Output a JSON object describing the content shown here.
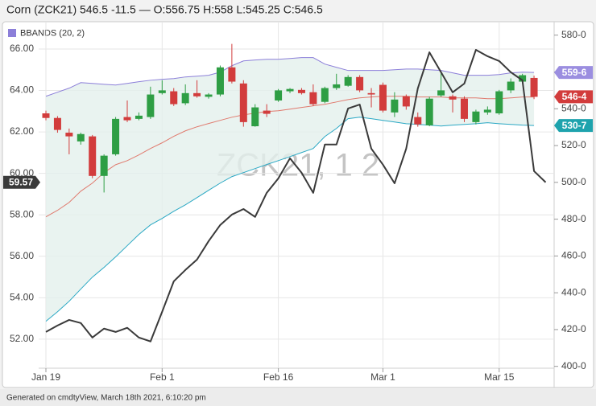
{
  "chart_data": {
    "type": "candlestick",
    "title": "Corn (ZCK21) 546.5 -11.5 — O:556.75 H:558 L:545.25 C:546.5",
    "watermark": "ZCK21, 1 2",
    "footer": "Generated on cmdtyView, March 18th 2021, 6:10:20 pm",
    "categories": [
      "Jan 19",
      null,
      null,
      null,
      null,
      null,
      null,
      null,
      null,
      null,
      "Feb 1",
      null,
      null,
      null,
      null,
      null,
      null,
      null,
      null,
      null,
      "Feb 16",
      null,
      null,
      null,
      null,
      null,
      null,
      null,
      null,
      "Mar 1",
      null,
      null,
      null,
      null,
      null,
      null,
      null,
      null,
      null,
      "Mar 15",
      null,
      null,
      null,
      null
    ],
    "ylim": [
      50.6,
      67.2
    ],
    "yticks": [
      {
        "value": 52,
        "label": "52.00"
      },
      {
        "value": 54,
        "label": "54.00"
      },
      {
        "value": 56,
        "label": "56.00"
      },
      {
        "value": 58,
        "label": "58.00"
      },
      {
        "value": 60,
        "label": "60.00"
      },
      {
        "value": 62,
        "label": "62.00"
      },
      {
        "value": 64,
        "label": "64.00"
      },
      {
        "value": 66,
        "label": "66.00"
      }
    ],
    "y2lim": [
      399,
      586
    ],
    "y2ticks": [
      {
        "value": 400,
        "label": "400-0"
      },
      {
        "value": 420,
        "label": "420-0"
      },
      {
        "value": 440,
        "label": "440-0"
      },
      {
        "value": 460,
        "label": "460-0"
      },
      {
        "value": 480,
        "label": "480-0"
      },
      {
        "value": 500,
        "label": "500-0"
      },
      {
        "value": 520,
        "label": "520-0"
      },
      {
        "value": 540,
        "label": "540-0"
      },
      {
        "value": 560,
        "label": "560-0"
      },
      {
        "value": 580,
        "label": "580-0"
      }
    ],
    "grid": true,
    "candles": {
      "axis": "y2",
      "up_color": "#2e9e44",
      "down_color": "#d23c3c",
      "open": [
        537.5,
        535,
        527,
        522.25,
        525,
        503.5,
        515.25,
        535.5,
        534.5,
        535.5,
        548.5,
        549.5,
        543,
        548.5,
        546.5,
        547.75,
        562.5,
        553.75,
        530.5,
        539,
        544.5,
        549.5,
        550.25,
        549,
        543.75,
        551.25,
        552.5,
        557.25,
        548.5,
        553,
        538,
        546.75,
        535.5,
        531,
        547.25,
        546.75,
        545.5,
        532.75,
        538,
        537.5,
        550,
        554.75,
        556.75,
        null
      ],
      "high": [
        539,
        536,
        529.25,
        527,
        525.75,
        515.25,
        535.5,
        544.5,
        538,
        552,
        555.5,
        551.25,
        553.25,
        555.5,
        548.5,
        563.5,
        575.25,
        555.5,
        542.5,
        542.5,
        550.75,
        551.25,
        551.25,
        553.25,
        552,
        559,
        558.25,
        558.25,
        551.25,
        554.25,
        549,
        547.75,
        538,
        546.5,
        560,
        547.75,
        546.75,
        539.5,
        541.25,
        550.25,
        556.5,
        559,
        558,
        null
      ],
      "low": [
        533.75,
        527,
        515.25,
        520.5,
        502.25,
        494.5,
        514.5,
        532.75,
        533.75,
        534.5,
        547.75,
        541.5,
        542,
        546,
        545.5,
        546.75,
        553.75,
        530.25,
        530.25,
        535.5,
        543.75,
        548.5,
        547.75,
        541.5,
        543,
        550.25,
        552,
        549,
        540.75,
        538,
        535.5,
        539.5,
        530.25,
        530.5,
        546.5,
        538,
        532.75,
        531.5,
        536.75,
        536.75,
        548.5,
        553.75,
        545.25,
        null
      ],
      "close": [
        535,
        528.5,
        525,
        526.25,
        503.5,
        514.5,
        534.5,
        533.75,
        536.25,
        547.75,
        550,
        542.5,
        548.5,
        546.75,
        547.75,
        562.5,
        554.75,
        532.75,
        540.75,
        537.25,
        550,
        550.75,
        548.5,
        542.5,
        551.25,
        553.25,
        557.25,
        550,
        547.75,
        539,
        545,
        541.25,
        531.5,
        545.5,
        550,
        545,
        534.5,
        538.5,
        539.5,
        549.5,
        554.75,
        558.25,
        546.5,
        null
      ]
    },
    "bands": {
      "name": "BBANDS (20, 2)",
      "axis": "y2",
      "color": "#8c7fd9",
      "middle_color": "#e07a6e",
      "lower_color": "#2aa8c4",
      "fill_color": "#e4f0ec",
      "upper": [
        546.8,
        549.0,
        551.2,
        554.2,
        553.8,
        553.3,
        552.9,
        553.8,
        554.7,
        555.5,
        556.0,
        556.4,
        557.3,
        557.7,
        558.2,
        559.9,
        563.4,
        566.0,
        566.5,
        566.9,
        566.9,
        567.3,
        567.8,
        567.8,
        564.3,
        562.5,
        560.8,
        560.8,
        560.8,
        560.8,
        561.2,
        561.6,
        561.6,
        561.2,
        560.8,
        559.5,
        558.2,
        558.2,
        558.2,
        558.6,
        559.5,
        559.9,
        559.75,
        null
      ],
      "middle": [
        481.3,
        484.8,
        489.1,
        495.2,
        499.6,
        505.3,
        509.6,
        511.8,
        514.9,
        518.4,
        521.5,
        525.0,
        528.0,
        530.2,
        532.0,
        533.7,
        535.4,
        536.7,
        537.6,
        538.5,
        538.9,
        539.8,
        540.7,
        541.6,
        542.4,
        543.7,
        545.0,
        545.9,
        546.4,
        546.8,
        546.8,
        546.8,
        546.4,
        546.4,
        546.4,
        545.9,
        545.9,
        545.9,
        545.5,
        545.5,
        545.9,
        546.4,
        546.4,
        null
      ],
      "lower": [
        424.5,
        429.7,
        435.4,
        442.0,
        448.5,
        453.8,
        459.5,
        465.6,
        471.7,
        476.9,
        480.4,
        484.3,
        487.8,
        491.7,
        495.7,
        499.6,
        503.1,
        505.3,
        507.5,
        509.7,
        511.8,
        514.0,
        516.2,
        518.4,
        524.9,
        529.3,
        534.6,
        535.4,
        534.6,
        533.7,
        532.8,
        531.9,
        531.5,
        531.1,
        530.6,
        531.1,
        531.5,
        531.9,
        532.4,
        531.9,
        531.5,
        531.1,
        530.875,
        null
      ]
    },
    "line": {
      "axis": "y",
      "color": "#3a3a3a",
      "values": [
        52.35,
        52.66,
        52.93,
        52.78,
        52.08,
        52.51,
        52.35,
        52.55,
        52.08,
        51.89,
        53.32,
        54.79,
        55.34,
        55.84,
        56.73,
        57.51,
        58.01,
        58.28,
        57.9,
        59.06,
        59.76,
        60.73,
        60.03,
        59.06,
        61.39,
        61.39,
        63.13,
        63.32,
        61.19,
        60.42,
        59.52,
        61.19,
        64.1,
        65.84,
        64.88,
        63.91,
        64.33,
        65.96,
        65.65,
        65.42,
        64.88,
        64.49,
        60.11,
        59.57
      ]
    },
    "badges": [
      {
        "value": 559.75,
        "label": "559-6",
        "color": "#9b8ee0",
        "axis": "y2"
      },
      {
        "value": 546.5,
        "label": "546-4",
        "color": "#d23c3c",
        "axis": "y2"
      },
      {
        "value": 530.875,
        "label": "530-7",
        "color": "#1ea3ad",
        "axis": "y2"
      },
      {
        "value": 59.57,
        "color": "#3a3a3a",
        "axis": "y"
      }
    ]
  }
}
